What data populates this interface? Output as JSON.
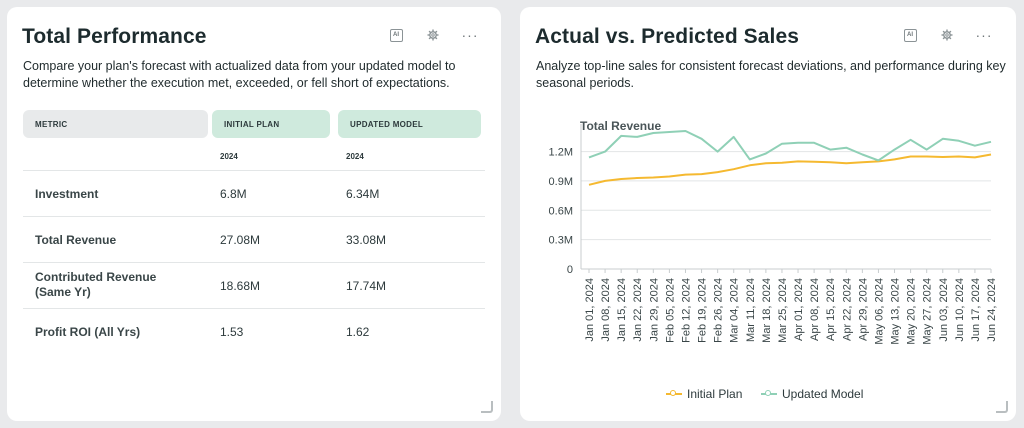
{
  "left_card": {
    "title": "Total Performance",
    "description": "Compare your plan's forecast with actualized data from your updated model to determine whether the execution met, exceeded, or fell short of expectations.",
    "tools": {
      "ai_label": "AI",
      "settings_icon": "gear-icon",
      "more_icon": "more-icon"
    },
    "table": {
      "headers": [
        "METRIC",
        "INITIAL PLAN",
        "UPDATED MODEL"
      ],
      "years": [
        "2024",
        "2024"
      ],
      "rows": [
        {
          "metric": "Investment",
          "plan": "6.8M",
          "model": "6.34M"
        },
        {
          "metric": "Total Revenue",
          "plan": "27.08M",
          "model": "33.08M"
        },
        {
          "metric": "Contributed Revenue\n(Same Yr)",
          "plan": "18.68M",
          "model": "17.74M"
        },
        {
          "metric": "Profit ROI (All Yrs)",
          "plan": "1.53",
          "model": "1.62"
        }
      ]
    }
  },
  "right_card": {
    "title": "Actual vs. Predicted Sales",
    "description": "Analyze top-line sales for consistent forecast deviations, and performance during key seasonal periods.",
    "tools": {
      "ai_label": "AI",
      "settings_icon": "gear-icon",
      "more_icon": "more-icon"
    }
  },
  "chart_data": {
    "type": "line",
    "title": "Total Revenue",
    "xlabel": "",
    "ylabel": "",
    "ylim": [
      0,
      1400000
    ],
    "yticks": [
      0,
      300000,
      600000,
      900000,
      1200000
    ],
    "ytick_labels": [
      "0",
      "0.3M",
      "0.6M",
      "0.9M",
      "1.2M"
    ],
    "grid": true,
    "legend_position": "bottom",
    "x": [
      "Jan 01, 2024",
      "Jan 08, 2024",
      "Jan 15, 2024",
      "Jan 22, 2024",
      "Jan 29, 2024",
      "Feb 05, 2024",
      "Feb 12, 2024",
      "Feb 19, 2024",
      "Feb 26, 2024",
      "Mar 04, 2024",
      "Mar 11, 2024",
      "Mar 18, 2024",
      "Mar 25, 2024",
      "Apr 01, 2024",
      "Apr 08, 2024",
      "Apr 15, 2024",
      "Apr 22, 2024",
      "Apr 29, 2024",
      "May 06, 2024",
      "May 13, 2024",
      "May 20, 2024",
      "May 27, 2024",
      "Jun 03, 2024",
      "Jun 10, 2024",
      "Jun 17, 2024",
      "Jun 24, 2024"
    ],
    "series": [
      {
        "name": "Initial Plan",
        "color": "#f5b930",
        "values": [
          860000,
          900000,
          920000,
          930000,
          935000,
          945000,
          965000,
          970000,
          990000,
          1020000,
          1060000,
          1080000,
          1085000,
          1100000,
          1095000,
          1090000,
          1080000,
          1090000,
          1100000,
          1120000,
          1150000,
          1150000,
          1145000,
          1150000,
          1140000,
          1170000
        ]
      },
      {
        "name": "Updated Model",
        "color": "#8fd0b6",
        "values": [
          1140000,
          1200000,
          1360000,
          1350000,
          1390000,
          1400000,
          1410000,
          1330000,
          1200000,
          1350000,
          1120000,
          1180000,
          1280000,
          1290000,
          1290000,
          1220000,
          1240000,
          1170000,
          1110000,
          1220000,
          1320000,
          1220000,
          1330000,
          1310000,
          1260000,
          1300000
        ]
      }
    ]
  }
}
